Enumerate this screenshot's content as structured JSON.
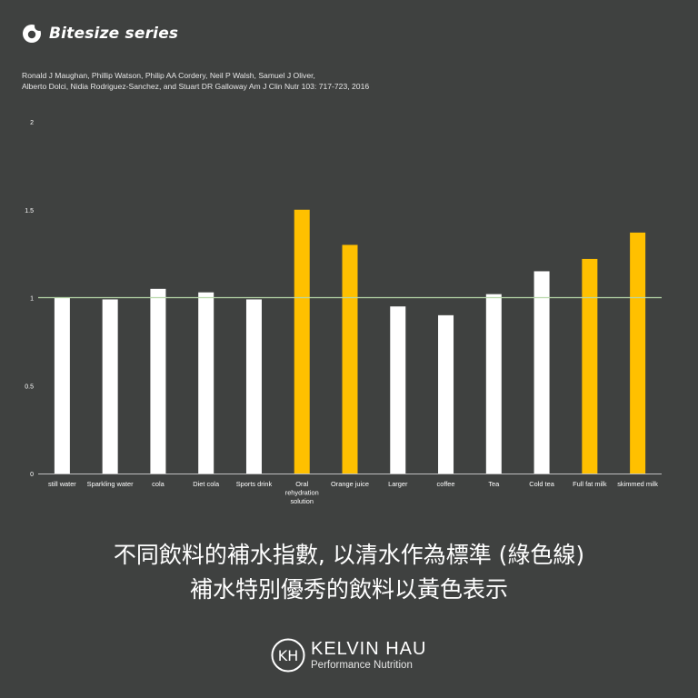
{
  "header": {
    "series_title": "Bitesize series",
    "citation": "Ronald J Maughan, Phillip Watson, Philip AA Cordery, Neil P Walsh, Samuel J Oliver,\nAlberto Dolci, Nidia Rodriguez-Sanchez, and Stuart DR Galloway Am J Clin Nutr  103: 717-723, 2016"
  },
  "chart_data": {
    "type": "bar",
    "title": "",
    "xlabel": "",
    "ylabel": "",
    "ylim": [
      0,
      2
    ],
    "yticks": [
      "0",
      "0.5",
      "1",
      "1.5",
      "2"
    ],
    "reference_line": {
      "value": 1,
      "color": "#b6d7a8"
    },
    "categories": [
      "still water",
      "Sparkling water",
      "cola",
      "Diet cola",
      "Sports drink",
      "Oral rehydration solution",
      "Orange juice",
      "Larger",
      "coffee",
      "Tea",
      "Cold tea",
      "Full fat milk",
      "skimmed milk"
    ],
    "category_label_lines": [
      [
        "still water"
      ],
      [
        "Sparkling water"
      ],
      [
        "cola"
      ],
      [
        "Diet cola"
      ],
      [
        "Sports drink"
      ],
      [
        "Oral",
        "rehydration",
        "solution"
      ],
      [
        "Orange juice"
      ],
      [
        "Larger"
      ],
      [
        "coffee"
      ],
      [
        "Tea"
      ],
      [
        "Cold tea"
      ],
      [
        "Full fat milk"
      ],
      [
        "skimmed milk"
      ]
    ],
    "values": [
      1.0,
      0.99,
      1.05,
      1.03,
      0.99,
      1.5,
      1.3,
      0.95,
      0.9,
      1.02,
      1.15,
      1.22,
      1.37
    ],
    "highlighted": [
      false,
      false,
      false,
      false,
      false,
      true,
      true,
      false,
      false,
      false,
      false,
      true,
      true
    ],
    "colors": {
      "normal": "#ffffff",
      "highlight": "#ffc000",
      "axis": "#bfbfbf"
    },
    "grid": false,
    "legend": "none"
  },
  "caption": {
    "line1": "不同飲料的補水指數, 以清水作為標準 (綠色線)",
    "line2": "補水特別優秀的飲料以黃色表示"
  },
  "brand": {
    "logo_text": "KH",
    "name": "KELVIN HAU",
    "tagline": "Performance Nutrition"
  }
}
